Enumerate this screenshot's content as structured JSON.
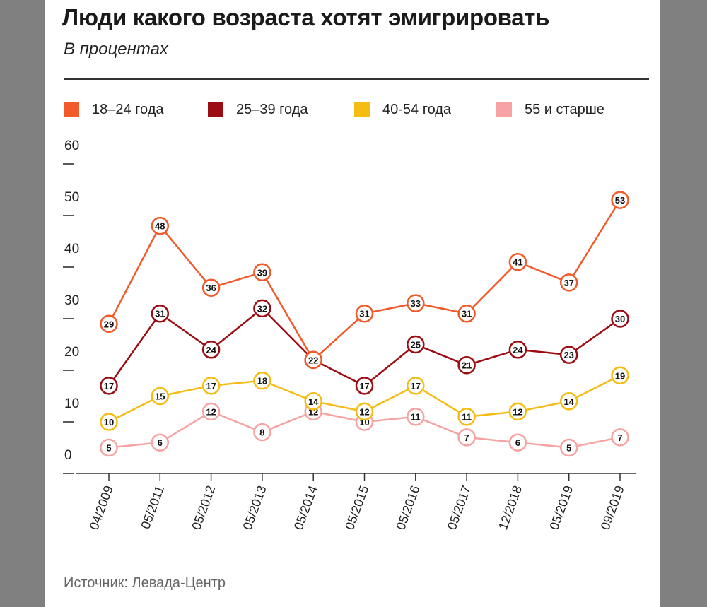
{
  "title": "Люди какого возраста хотят эмигрировать",
  "subtitle": "В процентах",
  "source": "Источник:  Левада-Центр",
  "chart_data": {
    "type": "line",
    "categories": [
      "04/2009",
      "05/2011",
      "05/2012",
      "05/2013",
      "05/2014",
      "05/2015",
      "05/2016",
      "05/2017",
      "12/2018",
      "05/2019",
      "09/2019"
    ],
    "ylim": [
      0,
      60
    ],
    "yticks": [
      "0",
      "10",
      "20",
      "30",
      "40",
      "50",
      "60"
    ],
    "grid": false,
    "legend_position": "top",
    "series": [
      {
        "name": "18–24 года",
        "color": "#f25a2a",
        "values": [
          29,
          48,
          36,
          39,
          22,
          31,
          33,
          31,
          41,
          37,
          53
        ]
      },
      {
        "name": "25–39 года",
        "color": "#9b0d12",
        "values": [
          17,
          31,
          24,
          32,
          22,
          17,
          25,
          21,
          24,
          23,
          30
        ]
      },
      {
        "name": "40-54 года",
        "color": "#f5bd14",
        "values": [
          10,
          15,
          17,
          18,
          14,
          12,
          17,
          11,
          12,
          14,
          19
        ]
      },
      {
        "name": "55 и старше",
        "color": "#f7a3a3",
        "values": [
          5,
          6,
          12,
          8,
          12,
          10,
          11,
          7,
          6,
          5,
          7
        ]
      }
    ]
  }
}
